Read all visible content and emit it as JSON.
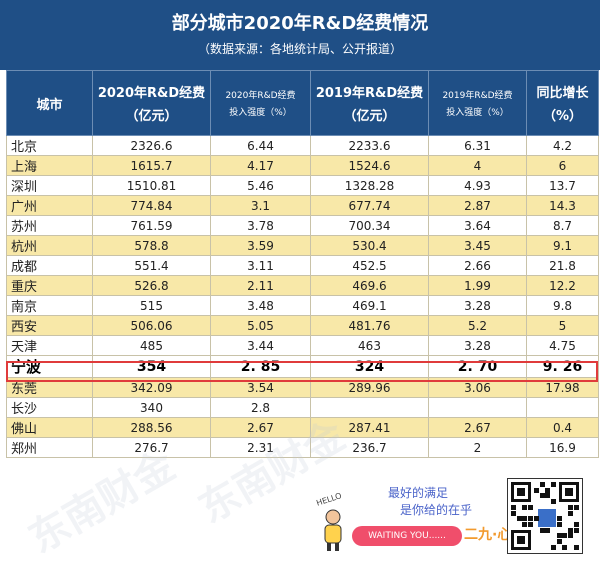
{
  "header": {
    "title": "部分城市2020年R&D经费情况",
    "subtitle": "（数据来源：各地统计局、公开报道）"
  },
  "table": {
    "columns": [
      {
        "line1": "城市",
        "line2": ""
      },
      {
        "line1": "2020年R&D经费",
        "line2": "（亿元）"
      },
      {
        "line1": "2020年R&D经费",
        "line2": "投入强度（%）"
      },
      {
        "line1": "2019年R&D经费",
        "line2": "（亿元）"
      },
      {
        "line1": "2019年R&D经费",
        "line2": "投入强度（%）"
      },
      {
        "line1": "同比增长",
        "line2": "（%）"
      }
    ],
    "rows": [
      {
        "city": "北京",
        "rd2020": "2326.6",
        "int2020": "6.44",
        "rd2019": "2233.6",
        "int2019": "6.31",
        "growth": "4.2",
        "style": "white"
      },
      {
        "city": "上海",
        "rd2020": "1615.7",
        "int2020": "4.17",
        "rd2019": "1524.6",
        "int2019": "4",
        "growth": "6",
        "style": "yellow"
      },
      {
        "city": "深圳",
        "rd2020": "1510.81",
        "int2020": "5.46",
        "rd2019": "1328.28",
        "int2019": "4.93",
        "growth": "13.7",
        "style": "white"
      },
      {
        "city": "广州",
        "rd2020": "774.84",
        "int2020": "3.1",
        "rd2019": "677.74",
        "int2019": "2.87",
        "growth": "14.3",
        "style": "yellow"
      },
      {
        "city": "苏州",
        "rd2020": "761.59",
        "int2020": "3.78",
        "rd2019": "700.34",
        "int2019": "3.64",
        "growth": "8.7",
        "style": "white"
      },
      {
        "city": "杭州",
        "rd2020": "578.8",
        "int2020": "3.59",
        "rd2019": "530.4",
        "int2019": "3.45",
        "growth": "9.1",
        "style": "yellow"
      },
      {
        "city": "成都",
        "rd2020": "551.4",
        "int2020": "3.11",
        "rd2019": "452.5",
        "int2019": "2.66",
        "growth": "21.8",
        "style": "white"
      },
      {
        "city": "重庆",
        "rd2020": "526.8",
        "int2020": "2.11",
        "rd2019": "469.6",
        "int2019": "1.99",
        "growth": "12.2",
        "style": "yellow"
      },
      {
        "city": "南京",
        "rd2020": "515",
        "int2020": "3.48",
        "rd2019": "469.1",
        "int2019": "3.28",
        "growth": "9.8",
        "style": "white"
      },
      {
        "city": "西安",
        "rd2020": "506.06",
        "int2020": "5.05",
        "rd2019": "481.76",
        "int2019": "5.2",
        "growth": "5",
        "style": "yellow"
      },
      {
        "city": "天津",
        "rd2020": "485",
        "int2020": "3.44",
        "rd2019": "463",
        "int2019": "3.28",
        "growth": "4.75",
        "style": "white"
      },
      {
        "city": "宁波",
        "rd2020": "354",
        "int2020": "2. 85",
        "rd2019": "324",
        "int2019": "2. 70",
        "growth": "9. 26",
        "style": "highlight"
      },
      {
        "city": "东莞",
        "rd2020": "342.09",
        "int2020": "3.54",
        "rd2019": "289.96",
        "int2019": "3.06",
        "growth": "17.98",
        "style": "yellow"
      },
      {
        "city": "长沙",
        "rd2020": "340",
        "int2020": "2.8",
        "rd2019": "",
        "int2019": "",
        "growth": "",
        "style": "white"
      },
      {
        "city": "佛山",
        "rd2020": "288.56",
        "int2020": "2.67",
        "rd2019": "287.41",
        "int2019": "2.67",
        "growth": "0.4",
        "style": "yellow"
      },
      {
        "city": "郑州",
        "rd2020": "276.7",
        "int2020": "2.31",
        "rd2019": "236.7",
        "int2019": "2",
        "growth": "16.9",
        "style": "white"
      }
    ]
  },
  "watermark": {
    "text": "东南财金"
  },
  "footer": {
    "line1": "最好的满足",
    "line2": "是你给的在乎",
    "hello": "HELLO",
    "pill": "WAITING YOU......",
    "deco": "二九·心"
  },
  "colors": {
    "header_bg": "#1f4f86",
    "row_yellow": "#f8e8a8",
    "highlight_border": "#e03b3b"
  },
  "icons": {
    "qr": "qr-code-icon"
  }
}
